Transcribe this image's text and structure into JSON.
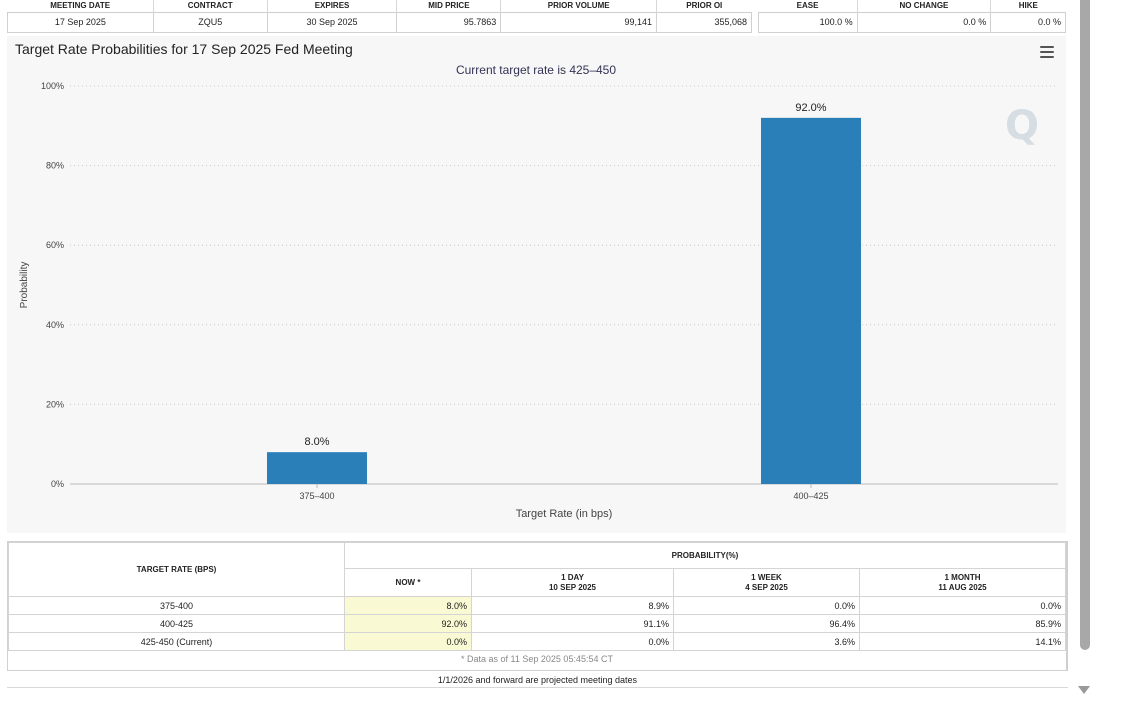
{
  "summary": {
    "headers": [
      "MEETING DATE",
      "CONTRACT",
      "EXPIRES",
      "MID PRICE",
      "PRIOR VOLUME",
      "PRIOR OI"
    ],
    "values": [
      "17 Sep 2025",
      "ZQU5",
      "30 Sep 2025",
      "95.7863",
      "99,141",
      "355,068"
    ],
    "prob_headers": [
      "EASE",
      "NO CHANGE",
      "HIKE"
    ],
    "prob_values": [
      "100.0 %",
      "0.0 %",
      "0.0 %"
    ]
  },
  "chart_title": "Target Rate Probabilities for 17 Sep 2025 Fed Meeting",
  "chart_data": {
    "type": "bar",
    "title": "Target Rate Probabilities for 17 Sep 2025 Fed Meeting",
    "subtitle": "Current target rate is 425–450",
    "xlabel": "Target Rate (in bps)",
    "ylabel": "Probability",
    "categories": [
      "375–400",
      "400–425"
    ],
    "values": [
      8.0,
      92.0
    ],
    "data_labels": [
      "8.0%",
      "92.0%"
    ],
    "ylim": [
      0,
      100
    ],
    "yticks": [
      0,
      20,
      40,
      60,
      80,
      100
    ],
    "ytick_labels": [
      "0%",
      "20%",
      "40%",
      "60%",
      "80%",
      "100%"
    ],
    "grid": true,
    "bar_color": "#2b7fb8",
    "watermark": "Q"
  },
  "prob_table": {
    "rate_header": "TARGET RATE (BPS)",
    "group_header": "PROBABILITY(%)",
    "columns": [
      {
        "line1": "NOW *",
        "line2": ""
      },
      {
        "line1": "1 DAY",
        "line2": "10 SEP 2025"
      },
      {
        "line1": "1 WEEK",
        "line2": "4 SEP 2025"
      },
      {
        "line1": "1 MONTH",
        "line2": "11 AUG 2025"
      }
    ],
    "rows": [
      {
        "rate": "375-400",
        "now": "8.0%",
        "day": "8.9%",
        "week": "0.0%",
        "month": "0.0%"
      },
      {
        "rate": "400-425",
        "now": "92.0%",
        "day": "91.1%",
        "week": "96.4%",
        "month": "85.9%"
      },
      {
        "rate": "425-450 (Current)",
        "now": "0.0%",
        "day": "0.0%",
        "week": "3.6%",
        "month": "14.1%"
      }
    ],
    "footnote": "* Data as of 11 Sep 2025 05:45:54 CT",
    "projected_note": "1/1/2026 and forward are projected meeting dates"
  }
}
